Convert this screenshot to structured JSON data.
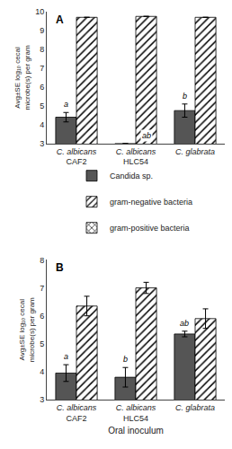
{
  "chart_data": [
    {
      "type": "bar",
      "title": "A",
      "categories": [
        "C. albicans\nCAF2",
        "C. albicans\nHLC54",
        "C. glabrata"
      ],
      "ylabel": "Avg±SE log₁₀ cecal microbe(s) per gram",
      "series": [
        {
          "name": "Candida sp.",
          "color": "#555555",
          "marker": "solid",
          "values": [
            4.4,
            3.0,
            4.75
          ],
          "errors": [
            0.25,
            0.0,
            0.35
          ],
          "annotations": [
            "a",
            null,
            "b"
          ]
        },
        {
          "name": "gram-negative bacteria",
          "color": "#ffffff",
          "marker": "hatch",
          "values": [
            9.7,
            9.75,
            9.7
          ],
          "errors": [
            0.0,
            0.0,
            0.0
          ],
          "annotations": [
            null,
            "ab",
            null
          ]
        },
        {
          "name": "gram-positive bacteria",
          "color": "#ffffff",
          "marker": "crosshatch",
          "values": [
            null,
            null,
            null
          ],
          "errors": [
            null,
            null,
            null
          ],
          "annotations": [
            null,
            null,
            null
          ]
        }
      ],
      "ylim": [
        3,
        10
      ],
      "yticks": [
        3,
        4,
        5,
        6,
        7,
        8,
        9,
        10
      ],
      "grid": false,
      "legend": "below"
    },
    {
      "type": "bar",
      "title": "B",
      "categories": [
        "C. albicans\nCAF2",
        "C. albicans\nHLC54",
        "C. glabrata"
      ],
      "xlabel": "Oral inoculum",
      "ylabel": "Avg±SE log₁₀ cecal microbe(s) per gram",
      "series": [
        {
          "name": "Candida sp.",
          "color": "#555555",
          "marker": "solid",
          "values": [
            3.95,
            3.8,
            5.35
          ],
          "errors": [
            0.3,
            0.35,
            0.1
          ],
          "annotations": [
            "a",
            "b",
            "ab"
          ]
        },
        {
          "name": "gram-negative bacteria",
          "color": "#ffffff",
          "marker": "hatch",
          "values": [
            6.35,
            7.0,
            5.9
          ],
          "errors": [
            0.35,
            0.2,
            0.35
          ],
          "annotations": [
            null,
            null,
            null
          ]
        },
        {
          "name": "gram-positive bacteria",
          "color": "#ffffff",
          "marker": "crosshatch",
          "values": [
            null,
            null,
            null
          ],
          "errors": [
            null,
            null,
            null
          ],
          "annotations": [
            null,
            null,
            null
          ]
        }
      ],
      "ylim": [
        3,
        8
      ],
      "yticks": [
        3,
        4,
        5,
        6,
        7,
        8
      ],
      "grid": false
    }
  ]
}
